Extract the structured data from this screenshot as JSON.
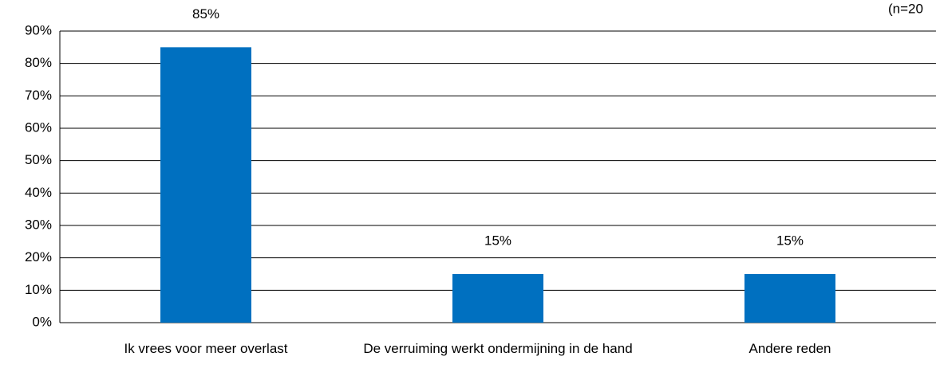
{
  "chart_data": {
    "type": "bar",
    "annotation": "(n=20",
    "categories": [
      "Ik vrees voor meer overlast",
      "De verruiming werkt ondermijning in de hand",
      "Andere reden"
    ],
    "values": [
      85,
      15,
      15
    ],
    "value_labels": [
      "85%",
      "15%",
      "15%"
    ],
    "color": "#0070c0",
    "ylim": [
      0,
      90
    ],
    "yticks": [
      {
        "value": 0,
        "label": "0%"
      },
      {
        "value": 10,
        "label": "10%"
      },
      {
        "value": 20,
        "label": "20%"
      },
      {
        "value": 30,
        "label": "30%"
      },
      {
        "value": 40,
        "label": "40%"
      },
      {
        "value": 50,
        "label": "50%"
      },
      {
        "value": 60,
        "label": "60%"
      },
      {
        "value": 70,
        "label": "70%"
      },
      {
        "value": 80,
        "label": "80%"
      },
      {
        "value": 90,
        "label": "90%"
      }
    ],
    "grid": true
  }
}
